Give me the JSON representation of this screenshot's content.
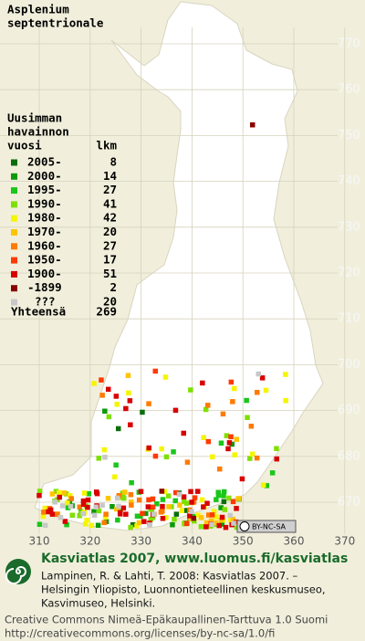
{
  "title": [
    "Asplenium",
    "septentrionale"
  ],
  "legend": {
    "heading": [
      "Uusimman",
      "havainnon",
      "vuosi"
    ],
    "count_heading": "lkm",
    "rows": [
      {
        "label": "2005-",
        "count": 8,
        "color": "#0b6e0b"
      },
      {
        "label": "2000-",
        "count": 14,
        "color": "#0a9a0a"
      },
      {
        "label": "1995-",
        "count": 27,
        "color": "#19c619"
      },
      {
        "label": "1990-",
        "count": 41,
        "color": "#7ee000"
      },
      {
        "label": "1980-",
        "count": 42,
        "color": "#f5f500"
      },
      {
        "label": "1970-",
        "count": 20,
        "color": "#ffc400"
      },
      {
        "label": "1960-",
        "count": 27,
        "color": "#ff7a00"
      },
      {
        "label": "1950-",
        "count": 17,
        "color": "#ff3a00"
      },
      {
        "label": "1900-",
        "count": 51,
        "color": "#d80000"
      },
      {
        "label": "-1899",
        "count": 2,
        "color": "#8a0000"
      },
      {
        "label": "???",
        "count": 20,
        "color": "#c8c8c8"
      }
    ],
    "total_label": "Yhteensä",
    "total": 269
  },
  "map": {
    "y_labels": [
      770,
      760,
      750,
      740,
      730,
      720,
      710,
      700,
      690,
      680,
      670
    ],
    "x_labels": [
      310,
      320,
      330,
      340,
      350,
      360,
      370
    ],
    "badge": "BY-NC-SA"
  },
  "footer": {
    "heading": "Kasviatlas 2007, www.luomus.fi/kasviatlas",
    "citation": [
      "Lampinen, R. & Lahti, T. 2008: Kasviatlas 2007. –",
      "Helsingin Yliopisto, Luonnontieteellinen keskusmuseo,",
      "Kasvimuseo, Helsinki."
    ],
    "license": [
      "Creative Commons Nimeä-Epäkaupallinen-Tarttuva 1.0 Suomi",
      "http://creativecommons.org/licenses/by-nc-sa/1.0/fi"
    ]
  }
}
